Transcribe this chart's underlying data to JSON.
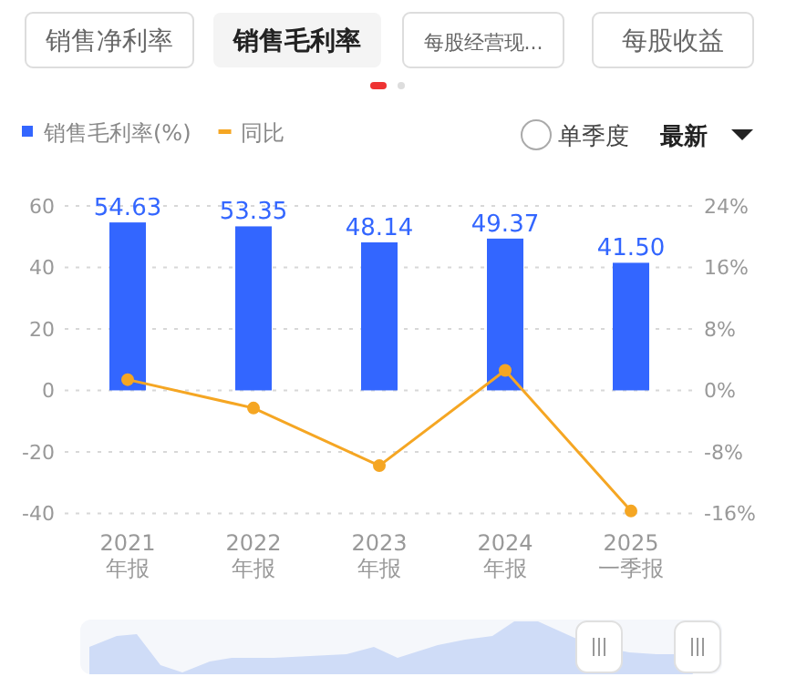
{
  "chart_data": {
    "type": "bar",
    "annotations": [
      "销售净利率",
      "销售毛利率",
      "每股经营现...",
      "每股收益",
      "单季度",
      "最新"
    ],
    "categories": [
      "2021 年报",
      "2022 年报",
      "2023 年报",
      "2024 年报",
      "2025 一季报"
    ],
    "series": [
      {
        "name": "销售毛利率(%)",
        "color": "#3366ff",
        "values": [
          54.63,
          53.35,
          48.14,
          49.37,
          41.5
        ],
        "value_labels": [
          "54.63",
          "53.35",
          "48.14",
          "49.37",
          "41.50"
        ]
      },
      {
        "name": "同比",
        "type": "line",
        "axis": "y2",
        "color": "#f5a623",
        "values": [
          1.4,
          -2.3,
          -9.8,
          2.6,
          -15.7
        ]
      }
    ],
    "ylim": [
      -40,
      60
    ],
    "yticks": [
      -40,
      -20,
      0,
      20,
      40,
      60
    ],
    "y2lim": [
      -16,
      24
    ],
    "y2ticks": [
      {
        "value": -16,
        "label": "-16%"
      },
      {
        "value": -8,
        "label": "-8%"
      },
      {
        "value": 0,
        "label": "0%"
      },
      {
        "value": 8,
        "label": "8%"
      },
      {
        "value": 16,
        "label": "16%"
      },
      {
        "value": 24,
        "label": "24%"
      }
    ],
    "grid": "y",
    "legend": "top left",
    "marker": "circle",
    "line_style": "solid"
  }
}
